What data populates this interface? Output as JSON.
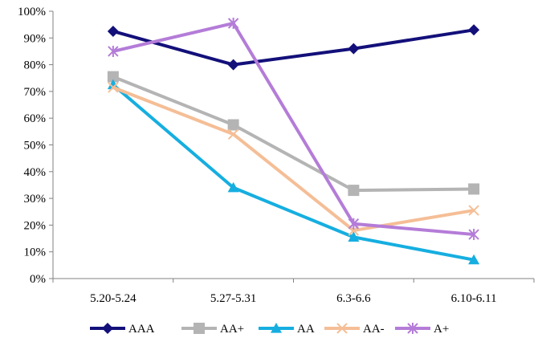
{
  "chart_data": {
    "type": "line",
    "categories": [
      "5.20-5.24",
      "5.27-5.31",
      "6.3-6.6",
      "6.10-6.11"
    ],
    "ylim": [
      0,
      100
    ],
    "yticks": [
      "0%",
      "10%",
      "20%",
      "30%",
      "40%",
      "50%",
      "60%",
      "70%",
      "80%",
      "90%",
      "100%"
    ],
    "grid": false,
    "legend_position": "bottom",
    "series": [
      {
        "name": "AAA",
        "values": [
          92.5,
          80.0,
          86.0,
          93.0
        ],
        "color": "#13107A",
        "marker": "diamond"
      },
      {
        "name": "AA+",
        "values": [
          75.5,
          57.5,
          33.0,
          33.5
        ],
        "color": "#B4B4B4",
        "marker": "square"
      },
      {
        "name": "AA",
        "values": [
          72.5,
          34.0,
          15.5,
          7.0
        ],
        "color": "#16AEE0",
        "marker": "triangle"
      },
      {
        "name": "AA-",
        "values": [
          71.5,
          54.0,
          18.0,
          25.5
        ],
        "color": "#F5BE96",
        "marker": "x"
      },
      {
        "name": "A+",
        "values": [
          85.0,
          95.5,
          20.5,
          16.5
        ],
        "color": "#B47CD8",
        "marker": "star"
      }
    ]
  }
}
